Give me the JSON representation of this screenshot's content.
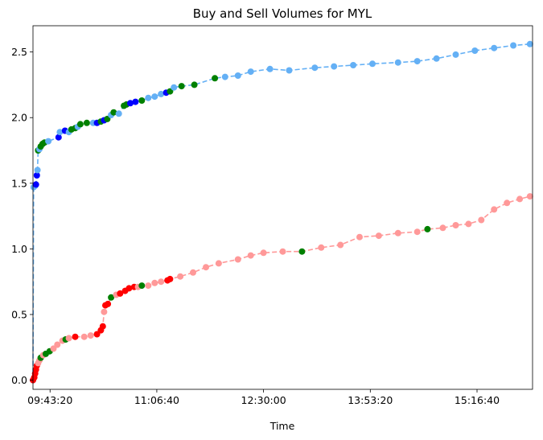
{
  "chart_data": {
    "type": "scatter",
    "title": "Buy and Sell Volumes for MYL",
    "xlabel": "Time",
    "ylabel": "",
    "x_unit": "time of day (HH:MM:SS)",
    "xlim": [
      "09:30:00",
      "16:00:00"
    ],
    "ylim": [
      -0.07,
      2.7
    ],
    "x_ticks": [
      "09:43:20",
      "11:06:40",
      "12:30:00",
      "13:53:20",
      "15:16:40"
    ],
    "y_ticks": [
      "0.0",
      "0.5",
      "1.0",
      "1.5",
      "2.0",
      "2.5"
    ],
    "grid": false,
    "legend": "none",
    "series": [
      {
        "role": "buy-cumulative",
        "line_style": "dashed",
        "colors": {
          "base": "#64b0f5",
          "highlight": "#0000ff",
          "marker": "#008000"
        },
        "points": [
          [
            "09:30:00",
            0.0,
            "base"
          ],
          [
            "09:30:30",
            1.47,
            "base"
          ],
          [
            "09:31:40",
            1.48,
            "base"
          ],
          [
            "09:32:20",
            1.49,
            "highlight"
          ],
          [
            "09:33:00",
            1.56,
            "highlight"
          ],
          [
            "09:33:30",
            1.6,
            "base"
          ],
          [
            "09:34:00",
            1.75,
            "marker"
          ],
          [
            "09:35:00",
            1.76,
            "base"
          ],
          [
            "09:36:00",
            1.78,
            "marker"
          ],
          [
            "09:37:30",
            1.8,
            "marker"
          ],
          [
            "09:39:00",
            1.81,
            "marker"
          ],
          [
            "09:42:00",
            1.82,
            "base"
          ],
          [
            "09:50:00",
            1.85,
            "highlight"
          ],
          [
            "09:51:00",
            1.89,
            "base"
          ],
          [
            "09:55:00",
            1.9,
            "highlight"
          ],
          [
            "09:58:00",
            1.89,
            "base"
          ],
          [
            "10:00:00",
            1.91,
            "marker"
          ],
          [
            "10:03:00",
            1.92,
            "marker"
          ],
          [
            "10:05:00",
            1.93,
            "base"
          ],
          [
            "10:07:00",
            1.95,
            "marker"
          ],
          [
            "10:12:00",
            1.96,
            "marker"
          ],
          [
            "10:17:00",
            1.96,
            "base"
          ],
          [
            "10:20:00",
            1.96,
            "highlight"
          ],
          [
            "10:23:00",
            1.97,
            "marker"
          ],
          [
            "10:25:30",
            1.98,
            "highlight"
          ],
          [
            "10:28:00",
            1.99,
            "marker"
          ],
          [
            "10:31:00",
            2.02,
            "base"
          ],
          [
            "10:33:00",
            2.04,
            "marker"
          ],
          [
            "10:37:00",
            2.03,
            "base"
          ],
          [
            "10:41:00",
            2.09,
            "marker"
          ],
          [
            "10:43:00",
            2.1,
            "marker"
          ],
          [
            "10:46:00",
            2.11,
            "highlight"
          ],
          [
            "10:50:00",
            2.12,
            "highlight"
          ],
          [
            "10:55:00",
            2.13,
            "marker"
          ],
          [
            "11:00:00",
            2.15,
            "base"
          ],
          [
            "11:05:00",
            2.16,
            "base"
          ],
          [
            "11:10:00",
            2.18,
            "base"
          ],
          [
            "11:14:00",
            2.19,
            "highlight"
          ],
          [
            "11:17:00",
            2.2,
            "marker"
          ],
          [
            "11:20:00",
            2.23,
            "base"
          ],
          [
            "11:26:00",
            2.24,
            "marker"
          ],
          [
            "11:36:00",
            2.25,
            "marker"
          ],
          [
            "11:52:00",
            2.3,
            "marker"
          ],
          [
            "12:00:00",
            2.31,
            "base"
          ],
          [
            "12:10:00",
            2.32,
            "base"
          ],
          [
            "12:20:00",
            2.35,
            "base"
          ],
          [
            "12:35:00",
            2.37,
            "base"
          ],
          [
            "12:50:00",
            2.36,
            "base"
          ],
          [
            "13:10:00",
            2.38,
            "base"
          ],
          [
            "13:25:00",
            2.39,
            "base"
          ],
          [
            "13:40:00",
            2.4,
            "base"
          ],
          [
            "13:55:00",
            2.41,
            "base"
          ],
          [
            "14:15:00",
            2.42,
            "base"
          ],
          [
            "14:30:00",
            2.43,
            "base"
          ],
          [
            "14:45:00",
            2.45,
            "base"
          ],
          [
            "15:00:00",
            2.48,
            "base"
          ],
          [
            "15:15:00",
            2.51,
            "base"
          ],
          [
            "15:30:00",
            2.53,
            "base"
          ],
          [
            "15:45:00",
            2.55,
            "base"
          ],
          [
            "15:58:00",
            2.56,
            "base"
          ]
        ]
      },
      {
        "role": "sell-cumulative",
        "line_style": "dashed",
        "colors": {
          "base": "#ff9999",
          "highlight": "#ff0000",
          "marker": "#008000"
        },
        "points": [
          [
            "09:30:00",
            0.0,
            "highlight"
          ],
          [
            "09:31:00",
            0.02,
            "highlight"
          ],
          [
            "09:31:40",
            0.05,
            "highlight"
          ],
          [
            "09:32:20",
            0.08,
            "highlight"
          ],
          [
            "09:33:00",
            0.11,
            "highlight"
          ],
          [
            "09:34:00",
            0.13,
            "base"
          ],
          [
            "09:35:00",
            0.15,
            "base"
          ],
          [
            "09:36:00",
            0.17,
            "marker"
          ],
          [
            "09:38:00",
            0.19,
            "base"
          ],
          [
            "09:40:00",
            0.2,
            "marker"
          ],
          [
            "09:43:00",
            0.22,
            "marker"
          ],
          [
            "09:46:00",
            0.24,
            "base"
          ],
          [
            "09:49:00",
            0.27,
            "base"
          ],
          [
            "09:53:00",
            0.3,
            "base"
          ],
          [
            "09:55:30",
            0.31,
            "marker"
          ],
          [
            "09:58:00",
            0.32,
            "base"
          ],
          [
            "10:03:00",
            0.33,
            "highlight"
          ],
          [
            "10:10:00",
            0.33,
            "base"
          ],
          [
            "10:15:00",
            0.34,
            "base"
          ],
          [
            "10:20:00",
            0.35,
            "highlight"
          ],
          [
            "10:23:00",
            0.38,
            "highlight"
          ],
          [
            "10:24:30",
            0.41,
            "highlight"
          ],
          [
            "10:25:30",
            0.52,
            "base"
          ],
          [
            "10:26:30",
            0.57,
            "highlight"
          ],
          [
            "10:28:30",
            0.58,
            "highlight"
          ],
          [
            "10:31:00",
            0.63,
            "marker"
          ],
          [
            "10:35:00",
            0.65,
            "base"
          ],
          [
            "10:38:00",
            0.66,
            "highlight"
          ],
          [
            "10:42:00",
            0.68,
            "highlight"
          ],
          [
            "10:45:00",
            0.7,
            "highlight"
          ],
          [
            "10:49:00",
            0.71,
            "highlight"
          ],
          [
            "10:52:00",
            0.71,
            "base"
          ],
          [
            "10:55:00",
            0.72,
            "marker"
          ],
          [
            "11:00:00",
            0.72,
            "base"
          ],
          [
            "11:05:00",
            0.74,
            "base"
          ],
          [
            "11:10:00",
            0.75,
            "base"
          ],
          [
            "11:15:00",
            0.76,
            "highlight"
          ],
          [
            "11:17:00",
            0.77,
            "highlight"
          ],
          [
            "11:25:00",
            0.79,
            "base"
          ],
          [
            "11:35:00",
            0.82,
            "base"
          ],
          [
            "11:45:00",
            0.86,
            "base"
          ],
          [
            "11:55:00",
            0.89,
            "base"
          ],
          [
            "12:10:00",
            0.92,
            "base"
          ],
          [
            "12:20:00",
            0.95,
            "base"
          ],
          [
            "12:30:00",
            0.97,
            "base"
          ],
          [
            "12:45:00",
            0.98,
            "base"
          ],
          [
            "13:00:00",
            0.98,
            "marker"
          ],
          [
            "13:15:00",
            1.01,
            "base"
          ],
          [
            "13:30:00",
            1.03,
            "base"
          ],
          [
            "13:45:00",
            1.09,
            "base"
          ],
          [
            "14:00:00",
            1.1,
            "base"
          ],
          [
            "14:15:00",
            1.12,
            "base"
          ],
          [
            "14:30:00",
            1.13,
            "base"
          ],
          [
            "14:38:00",
            1.15,
            "marker"
          ],
          [
            "14:50:00",
            1.16,
            "base"
          ],
          [
            "15:00:00",
            1.18,
            "base"
          ],
          [
            "15:10:00",
            1.19,
            "base"
          ],
          [
            "15:20:00",
            1.22,
            "base"
          ],
          [
            "15:30:00",
            1.3,
            "base"
          ],
          [
            "15:40:00",
            1.35,
            "base"
          ],
          [
            "15:50:00",
            1.38,
            "base"
          ],
          [
            "15:58:00",
            1.4,
            "base"
          ]
        ]
      }
    ]
  }
}
